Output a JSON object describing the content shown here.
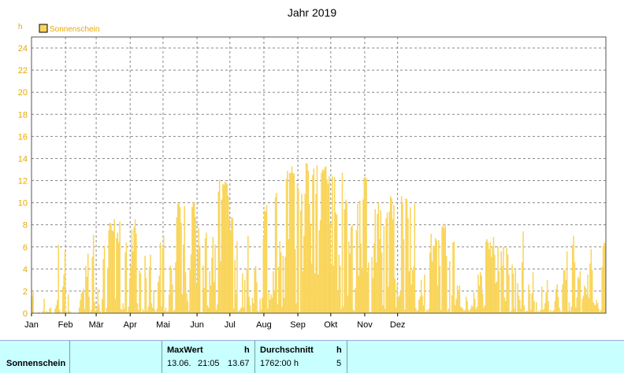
{
  "chart_data": {
    "type": "bar",
    "title": "Jahr 2019",
    "ylabel": "h",
    "ylim": [
      0,
      25
    ],
    "yticks": [
      0,
      2,
      4,
      6,
      8,
      10,
      12,
      14,
      16,
      18,
      20,
      22,
      24
    ],
    "xticks": [
      "Jan",
      "Feb",
      "Mär",
      "Apr",
      "Mai",
      "Jun",
      "Jul",
      "Aug",
      "Sep",
      "Okt",
      "Nov",
      "Dez"
    ],
    "grid": true,
    "legend": "top-left",
    "series": [
      {
        "name": "Sonnenschein",
        "color": "#f9d55b",
        "values": [
          1.5,
          2.1,
          0,
          0,
          0,
          0,
          0.1,
          0,
          0,
          0,
          0.2,
          1.3,
          0,
          0.2,
          0.1,
          0.1,
          0.4,
          0.5,
          0,
          0,
          0,
          0.4,
          0.7,
          1.2,
          6.2,
          0.3,
          0.1,
          0,
          2.4,
          3.5,
          5.6,
          0.2,
          0,
          1.7,
          0.2,
          0.1,
          0,
          0,
          0,
          0,
          0,
          0,
          0,
          0.5,
          1.2,
          1.8,
          2.0,
          2.2,
          0.4,
          4.3,
          3.3,
          5.4,
          1.5,
          0.1,
          0.3,
          5.1,
          7.1,
          1.0,
          0.1,
          0.4,
          2.2,
          0.8,
          0.2,
          0,
          1.3,
          4.9,
          6.1,
          0.1,
          0.5,
          4.1,
          7.5,
          8.2,
          8.1,
          7.5,
          7.4,
          8.5,
          1.3,
          6.8,
          7.3,
          6.4,
          8.3,
          0.4,
          0.3,
          0.9,
          0.4,
          5.5,
          6.4,
          0.1,
          0.6,
          3.2,
          4.3,
          7.6,
          5.6,
          7.8,
          8.5,
          7.2,
          0.9,
          0.3,
          3.9,
          3.6,
          0.1,
          0.4,
          0.2,
          5.2,
          3.2,
          0.2,
          0.6,
          4.2,
          5.3,
          0.9,
          0.5,
          2.1,
          0.3,
          0.1,
          0.4,
          2.8,
          3.4,
          6.4,
          0.6,
          5.9,
          7.0,
          0.2,
          0.5,
          0.1,
          0.2,
          1.7,
          4.3,
          4.1,
          2.6,
          0.2,
          0.3,
          4.6,
          8.7,
          10.0,
          9.9,
          9.6,
          8.2,
          1.7,
          6.2,
          9.7,
          3.7,
          1.8,
          1.1,
          0.2,
          3.9,
          5.3,
          9.6,
          10.1,
          10.0,
          8.7,
          2.7,
          5.6,
          7.7,
          6.1,
          0.1,
          0.1,
          4.3,
          2.3,
          6.8,
          7.3,
          0.7,
          0.5,
          3.8,
          2.5,
          5.0,
          6.9,
          2.8,
          6.2,
          0.3,
          0.8,
          11.0,
          12.1,
          4.7,
          10.3,
          11.7,
          11.6,
          11.9,
          11.8,
          11.7,
          10.6,
          8.5,
          7.5,
          8.7,
          8.6,
          0.4,
          4.8,
          1.8,
          6.5,
          0.2,
          0.2,
          0.4,
          0.5,
          3.6,
          0.5,
          3.0,
          0.1,
          4.0,
          7.0,
          1.5,
          0.7,
          0.1,
          1.4,
          0.9,
          3.9,
          4.3,
          2.8,
          0.2,
          0.1,
          1.3,
          0.3,
          1.4,
          6.8,
          9.3,
          9.2,
          9.8,
          0.4,
          1.9,
          1.2,
          1.7,
          1.4,
          3.8,
          2.1,
          10.5,
          10.9,
          0.8,
          4.2,
          6.5,
          5.5,
          0.6,
          5.2,
          1.4,
          5.1,
          12.2,
          12.9,
          6.7,
          12.7,
          12.7,
          13.3,
          12.7,
          12.6,
          5.8,
          0.9,
          11.7,
          11.2,
          0.1,
          9.3,
          10.8,
          3.8,
          7.0,
          10.8,
          13.6,
          13.5,
          12.9,
          9.9,
          8.1,
          4.5,
          12.5,
          13.1,
          3.6,
          10.8,
          13.4,
          3.5,
          7.5,
          8.4,
          12.7,
          13.0,
          12.9,
          13.2,
          13.3,
          12.1,
          11.7,
          12.4,
          8.1,
          4.4,
          12.4,
          4.3,
          12.3,
          9.1,
          8.9,
          2.1,
          5.3,
          4.3,
          0.4,
          12.7,
          0.6,
          9.4,
          10.3,
          10.1,
          1.6,
          6.5,
          5.4,
          7.8,
          8.0,
          0.3,
          0.2,
          2.3,
          7.5,
          9.9,
          3.4,
          10.2,
          6.3,
          4.1,
          10.3,
          12.3,
          12.3,
          12.2,
          3.8,
          4.6,
          0.1,
          0.1,
          5.1,
          3.2,
          6.3,
          9.4,
          4.6,
          9.0,
          10.0,
          6.7,
          9.3,
          5.5,
          0.7,
          7.9,
          0.4,
          8.6,
          9.1,
          2.4,
          9.2,
          10.6,
          10.4,
          8.5,
          9.8,
          3.1,
          0.5,
          2.7,
          1.4,
          1.6,
          2.0,
          10.6,
          10.0,
          6.7,
          0.3,
          10.4,
          10.3,
          8.6,
          3.8,
          9.6,
          2.6,
          3.9,
          4.2,
          9.9,
          0.5,
          0.2,
          0.3,
          1.2,
          1.5,
          3.0,
          1.6,
          0.7,
          3.5,
          0.1,
          0.3,
          0.2,
          0.4,
          5.5,
          7.2,
          4.7,
          6.1,
          6.1,
          6.8,
          6.6,
          2.5,
          6.6,
          4.3,
          0.3,
          7.8,
          8.1,
          7.7,
          8.0,
          5.2,
          0.2,
          0.4,
          4.7,
          0.1,
          1.6,
          6.4,
          6.5,
          0.7,
          1.3,
          2.5,
          2.1,
          2.5,
          0.6,
          0.5,
          0.4,
          0.2,
          0.3,
          1.5,
          1.1,
          0.3,
          0.2,
          0.4,
          0.7,
          0.6,
          1.9,
          1.3,
          0.4,
          0.6,
          3.5,
          2.5,
          3.7,
          3.4,
          1.8,
          0.5,
          0.7,
          6.5,
          6.7,
          6.4,
          5.8,
          6.4,
          5.1,
          6.0,
          6.9,
          5.3,
          2.7,
          2.9,
          6.1,
          3.8,
          0.1,
          5.6,
          4.3,
          6.0,
          1.4,
          1.1,
          5.9,
          5.3,
          3.5,
          0.1,
          0.2,
          4.4,
          3.6,
          0.4,
          4.1,
          0.1,
          2.7,
          1.6,
          1.2,
          0.4,
          4.6,
          7.4,
          0.7,
          0.1,
          0.2,
          0.2,
          2.6,
          1.8,
          0.3,
          1.8,
          3.7,
          1.1,
          0.1,
          1.0,
          0.1,
          0.2,
          0.1,
          0.3,
          2.4,
          0.3,
          0.4,
          0.9,
          1.9,
          3.0,
          1.1,
          0.1,
          0.3,
          0.1,
          0.2,
          0.3,
          1.1,
          2.2,
          2.6,
          1.5,
          0.5,
          0.2,
          0.1,
          2.6,
          3.9,
          3.9,
          3.0,
          5.6,
          0.2,
          1.0,
          0.2,
          0.6,
          6.2,
          7.0,
          4.6,
          0.5,
          1.4,
          3.3,
          3.1,
          3.8,
          0.1,
          1.3,
          1.6,
          2.5,
          2.3,
          1.7,
          3.5,
          1.4,
          4.5,
          5.8,
          3.9,
          1.0,
          0.8,
          0.7,
          1.2,
          0.9,
          0.4,
          0.1,
          0.3,
          4.2,
          6.1,
          6.4,
          6.3
        ]
      }
    ]
  },
  "footer": {
    "row_label": "Sonnenschein",
    "max_header": "MaxWert",
    "max_unit": "h",
    "max_date": "13.06.",
    "max_time": "21:05",
    "max_value": "13.67",
    "avg_header": "Durchschnitt",
    "avg_unit": "h",
    "avg_total": "1762:00 h",
    "avg_value": "5"
  }
}
